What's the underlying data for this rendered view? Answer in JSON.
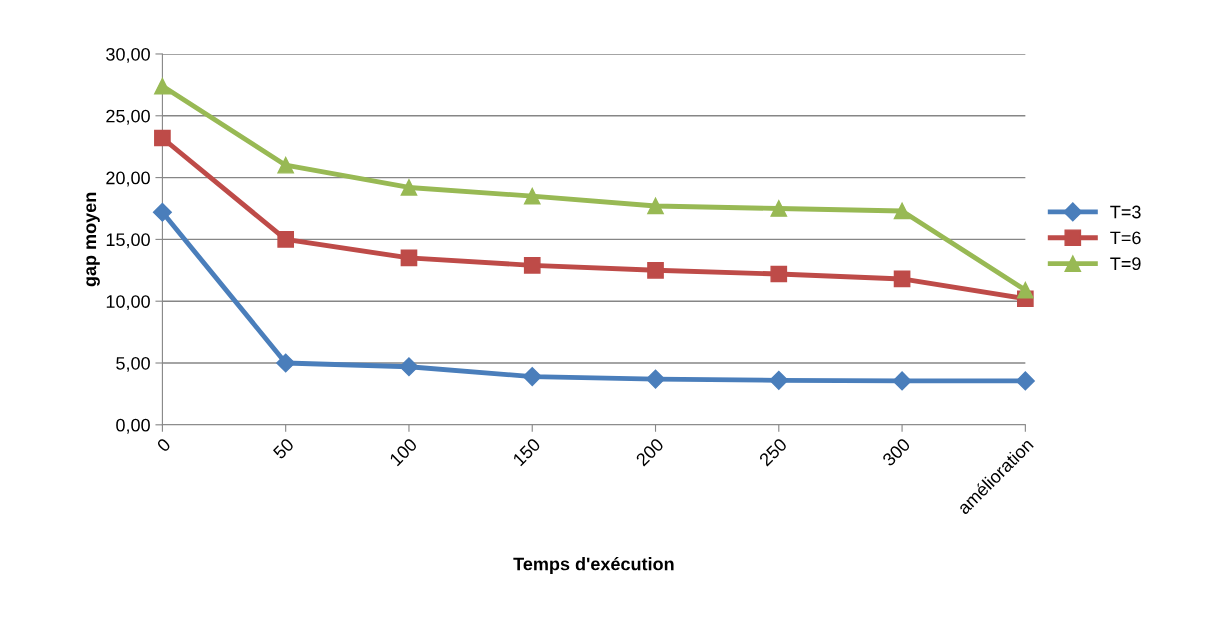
{
  "chart_data": {
    "type": "line",
    "xlabel": "Temps d'exécution",
    "ylabel": "gap moyen",
    "categories": [
      "0",
      "50",
      "100",
      "150",
      "200",
      "250",
      "300",
      "amélioration"
    ],
    "series": [
      {
        "name": "T=3",
        "color": "#4a7ebb",
        "marker": "diamond",
        "values": [
          17.2,
          5.0,
          4.7,
          3.9,
          3.7,
          3.6,
          3.55,
          3.55
        ]
      },
      {
        "name": "T=6",
        "color": "#be4b48",
        "marker": "square",
        "values": [
          23.2,
          15.0,
          13.5,
          12.9,
          12.5,
          12.2,
          11.8,
          10.2
        ]
      },
      {
        "name": "T=9",
        "color": "#98b954",
        "marker": "triangle",
        "values": [
          27.4,
          21.0,
          19.2,
          18.5,
          17.7,
          17.5,
          17.3,
          10.9
        ]
      }
    ],
    "ylim": [
      0,
      30
    ],
    "yticks": [
      {
        "value": 0,
        "label": "0,00"
      },
      {
        "value": 5,
        "label": "5,00"
      },
      {
        "value": 10,
        "label": "10,00"
      },
      {
        "value": 15,
        "label": "15,00"
      },
      {
        "value": 20,
        "label": "20,00"
      },
      {
        "value": 25,
        "label": "25,00"
      },
      {
        "value": 30,
        "label": "30,00"
      }
    ],
    "grid": "y",
    "legend": "right",
    "line_style": "solid"
  }
}
